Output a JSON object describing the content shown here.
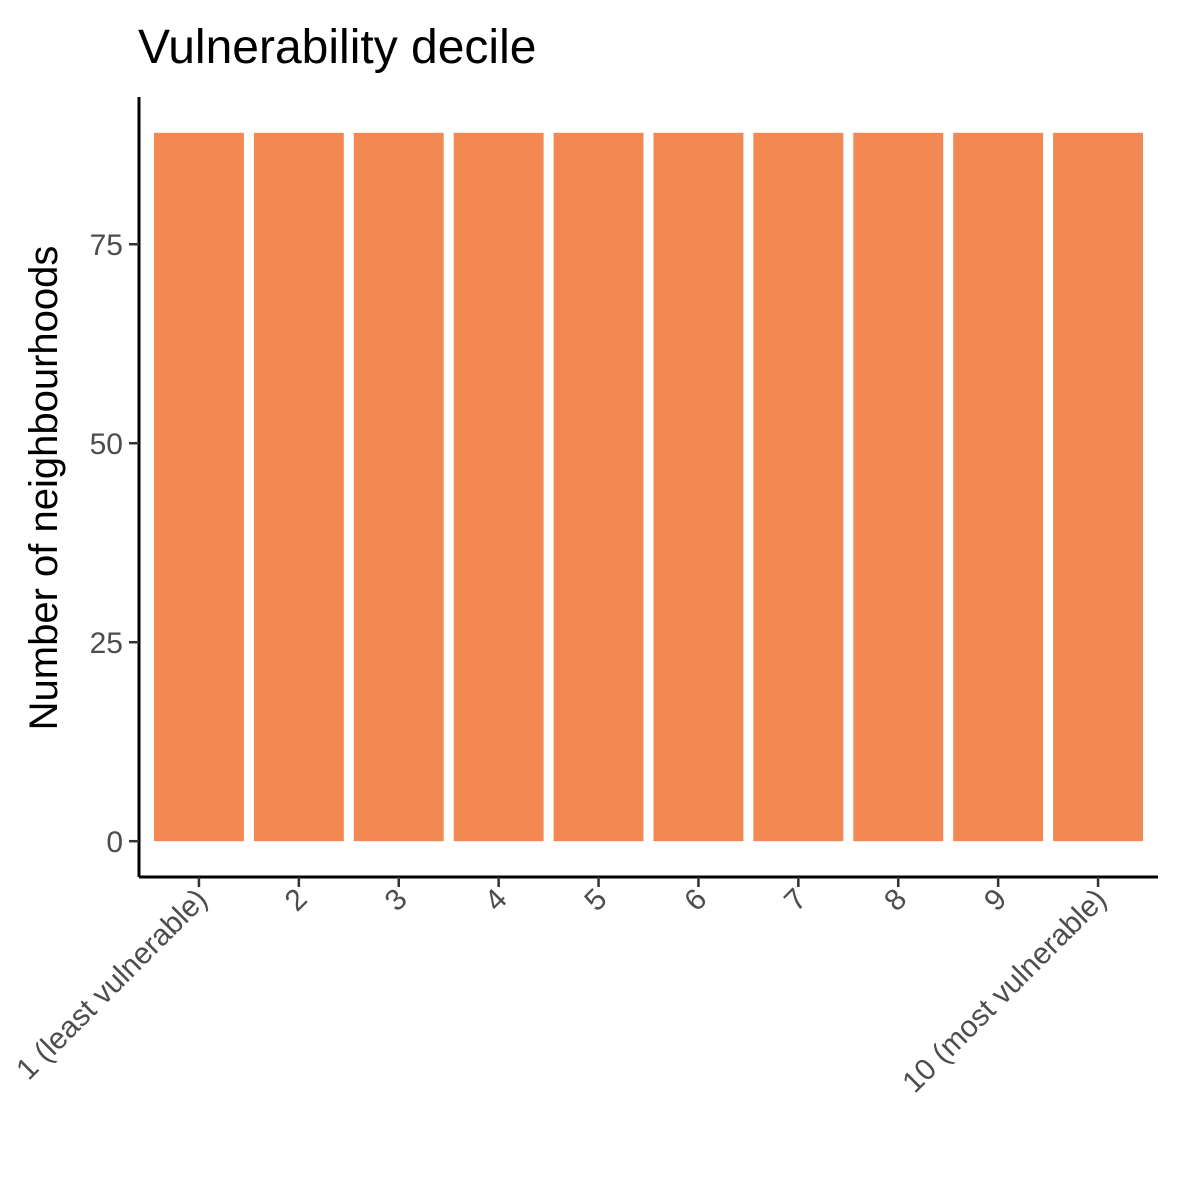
{
  "chart_data": {
    "type": "bar",
    "title": "Vulnerability decile",
    "xlabel": "",
    "ylabel": "Number of neighbourhoods",
    "categories": [
      "1 (least vulnerable)",
      "2",
      "3",
      "4",
      "5",
      "6",
      "7",
      "8",
      "9",
      "10 (most vulnerable)"
    ],
    "values": [
      89,
      89,
      89,
      89,
      89,
      89,
      89,
      89,
      89,
      89
    ],
    "ylim": [
      -4.5,
      93.5
    ],
    "yticks": [
      0,
      25,
      50,
      75
    ],
    "bar_color": "#F28852",
    "grid": false,
    "legend": "none"
  }
}
